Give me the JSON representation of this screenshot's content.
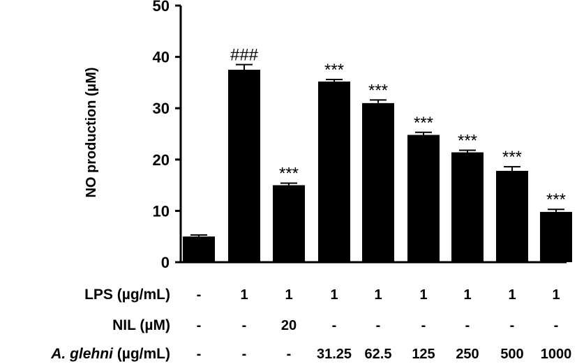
{
  "chart_data": {
    "type": "bar",
    "ylabel": "NO production (µM)",
    "ylim": [
      0,
      50
    ],
    "yticks": [
      "0",
      "10",
      "20",
      "30",
      "40",
      "50"
    ],
    "values": [
      5.0,
      37.5,
      15.0,
      35.2,
      31.0,
      24.8,
      21.4,
      17.8,
      9.8
    ],
    "errors": [
      0.3,
      1.0,
      0.4,
      0.4,
      0.6,
      0.5,
      0.4,
      0.8,
      0.5
    ],
    "annotations": [
      "",
      "###",
      "***",
      "***",
      "***",
      "***",
      "***",
      "***",
      "***"
    ],
    "rows": [
      {
        "label": "LPS (µg/mL)",
        "values": [
          "-",
          "1",
          "1",
          "1",
          "1",
          "1",
          "1",
          "1",
          "1"
        ]
      },
      {
        "label": "NIL (µM)",
        "values": [
          "-",
          "-",
          "20",
          "-",
          "-",
          "-",
          "-",
          "-",
          "-"
        ]
      },
      {
        "label_italic": "A. glehni",
        "label_rest": " (µg/mL)",
        "values": [
          "-",
          "-",
          "-",
          "31.25",
          "62.5",
          "125",
          "250",
          "500",
          "1000"
        ]
      }
    ]
  }
}
